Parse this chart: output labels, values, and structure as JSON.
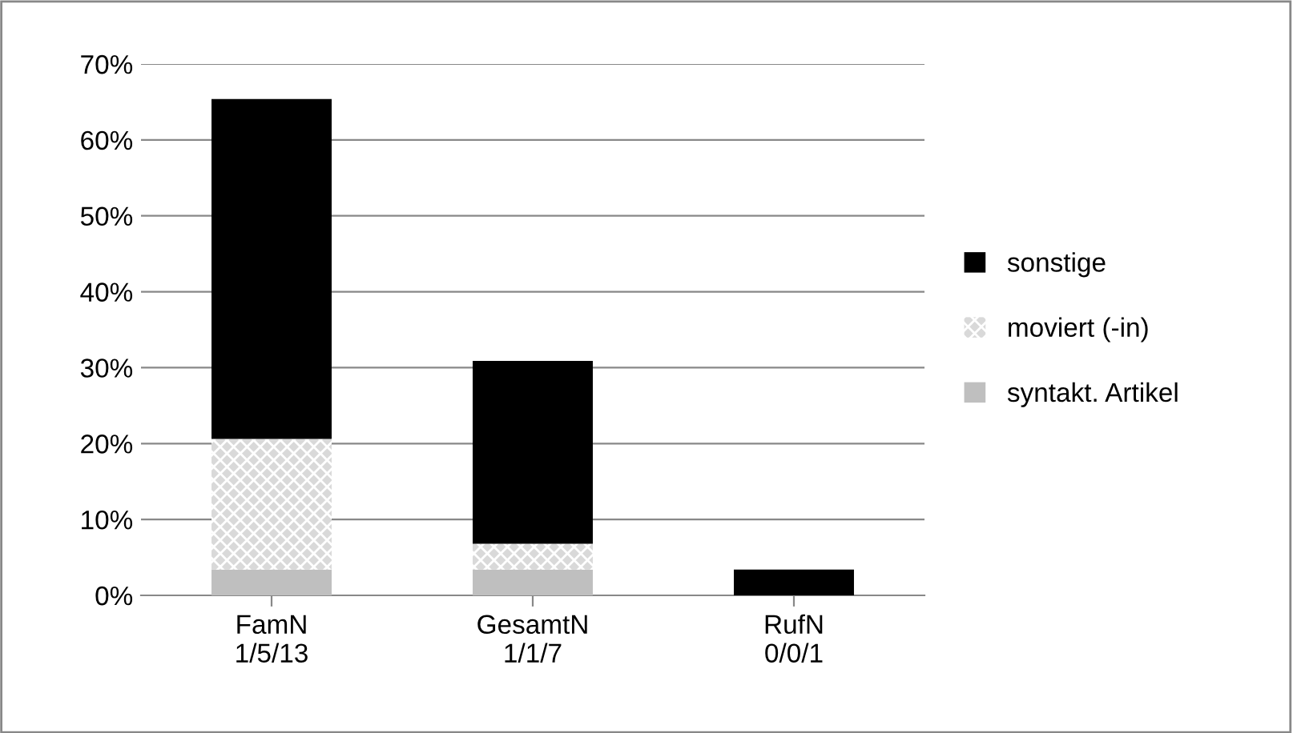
{
  "chart_data": {
    "type": "bar",
    "stacked": true,
    "categories": [
      "FamN\n1/5/13",
      "GesamtN\n1/1/7",
      "RufN\n0/0/1"
    ],
    "series": [
      {
        "name": "syntakt. Artikel",
        "color": "#bfbfbf",
        "values": [
          3.4,
          3.4,
          0
        ]
      },
      {
        "name": "moviert (-in)",
        "color": "#d9d9d9",
        "values": [
          17.2,
          3.4,
          0
        ]
      },
      {
        "name": "sonstige",
        "color": "#000000",
        "values": [
          44.8,
          24.1,
          3.4
        ]
      }
    ],
    "ylim": [
      0,
      70
    ],
    "yticks": [
      {
        "value": 0,
        "label": "0%"
      },
      {
        "value": 10,
        "label": "10%"
      },
      {
        "value": 20,
        "label": "20%"
      },
      {
        "value": 30,
        "label": "30%"
      },
      {
        "value": 40,
        "label": "40%"
      },
      {
        "value": 50,
        "label": "50%"
      },
      {
        "value": 60,
        "label": "60%"
      },
      {
        "value": 70,
        "label": "70%"
      }
    ],
    "grid": "y",
    "legend": "right"
  }
}
